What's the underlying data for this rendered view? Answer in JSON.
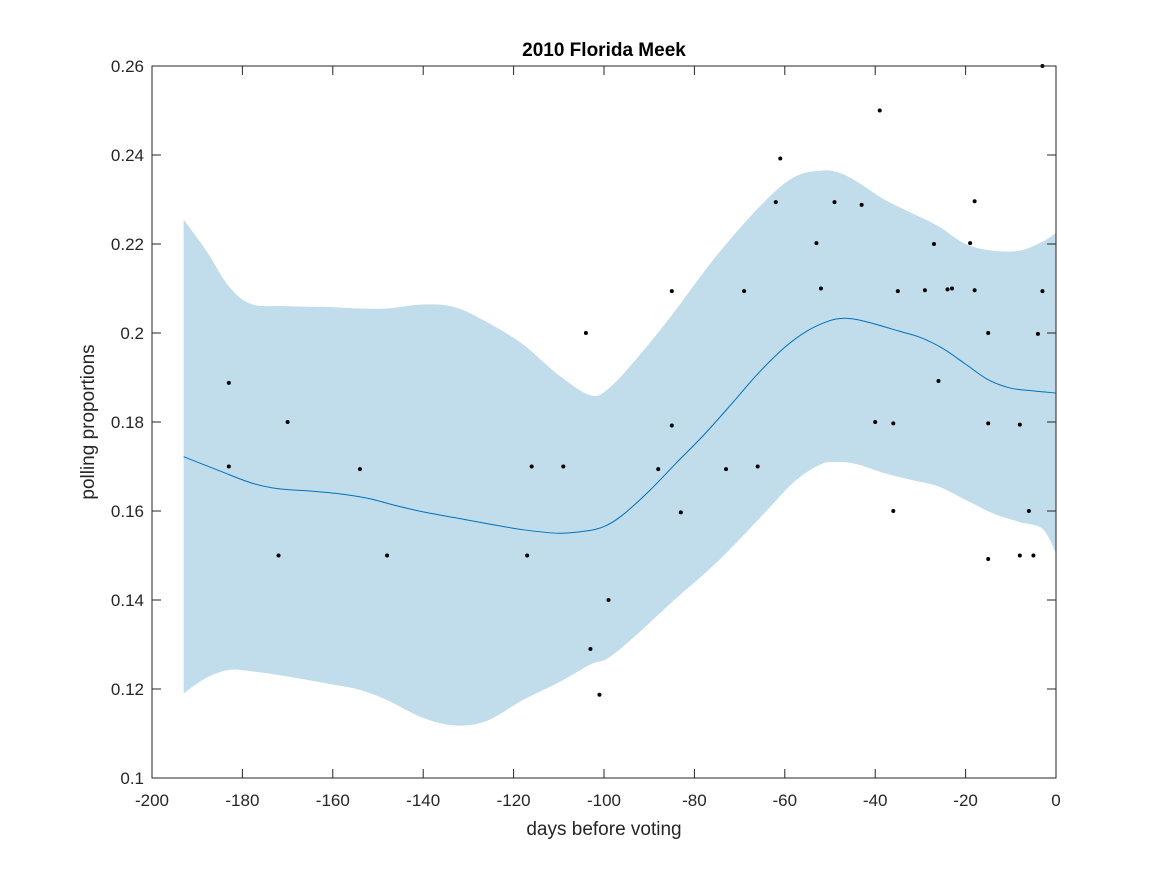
{
  "chart_data": {
    "type": "scatter",
    "title": "2010 Florida Meek",
    "xlabel": "days before voting",
    "ylabel": "polling proportions",
    "xlim": [
      -200,
      0
    ],
    "ylim": [
      0.1,
      0.26
    ],
    "xticks": [
      -200,
      -180,
      -160,
      -140,
      -120,
      -100,
      -80,
      -60,
      -40,
      -20,
      0
    ],
    "xtick_labels": [
      "-200",
      "-180",
      "-160",
      "-140",
      "-120",
      "-100",
      "-80",
      "-60",
      "-40",
      "-20",
      "0"
    ],
    "yticks": [
      0.1,
      0.12,
      0.14,
      0.16,
      0.18,
      0.2,
      0.22,
      0.24,
      0.26
    ],
    "ytick_labels": [
      "0.1",
      "0.12",
      "0.14",
      "0.16",
      "0.18",
      "0.2",
      "0.22",
      "0.24",
      "0.26"
    ],
    "grid": false,
    "colors": {
      "band": "#c1dcea",
      "trend": "#0072bd",
      "points": "#000000",
      "axes": "#262626"
    },
    "confidence_band": {
      "x": [
        -193,
        -188,
        -183,
        -178,
        -170,
        -160,
        -154,
        -148,
        -140,
        -133,
        -126,
        -118,
        -110,
        -103,
        -99,
        -93,
        -85,
        -75,
        -65,
        -58,
        -52,
        -48,
        -44,
        -38,
        -32,
        -26,
        -20,
        -14,
        -8,
        -3,
        0
      ],
      "upper": [
        0.2255,
        0.2185,
        0.2105,
        0.2065,
        0.206,
        0.2058,
        0.2055,
        0.2055,
        0.2064,
        0.2058,
        0.2025,
        0.1975,
        0.1905,
        0.186,
        0.1875,
        0.194,
        0.204,
        0.2175,
        0.229,
        0.235,
        0.2365,
        0.236,
        0.234,
        0.23,
        0.227,
        0.224,
        0.22,
        0.2185,
        0.2185,
        0.2205,
        0.2225
      ],
      "lower": [
        0.119,
        0.1225,
        0.1243,
        0.124,
        0.1228,
        0.121,
        0.1198,
        0.1175,
        0.1135,
        0.1118,
        0.1128,
        0.1175,
        0.1215,
        0.1255,
        0.127,
        0.132,
        0.1395,
        0.1485,
        0.159,
        0.1665,
        0.1705,
        0.171,
        0.1705,
        0.1685,
        0.167,
        0.1655,
        0.1625,
        0.1595,
        0.1575,
        0.156,
        0.1505
      ]
    },
    "series": [
      {
        "type": "line",
        "x": [
          -193,
          -185,
          -178,
          -172,
          -165,
          -158,
          -152,
          -146,
          -140,
          -133,
          -126,
          -118,
          -110,
          -104,
          -100,
          -96,
          -90,
          -84,
          -78,
          -72,
          -66,
          -60,
          -55,
          -50,
          -47,
          -44,
          -40,
          -35,
          -30,
          -25,
          -20,
          -15,
          -10,
          -5,
          0
        ],
        "y": [
          0.1722,
          0.169,
          0.1663,
          0.165,
          0.1645,
          0.1638,
          0.1628,
          0.1612,
          0.1598,
          0.1585,
          0.1572,
          0.1558,
          0.155,
          0.1555,
          0.1565,
          0.159,
          0.1645,
          0.1708,
          0.177,
          0.1838,
          0.1908,
          0.1968,
          0.2005,
          0.2028,
          0.2033,
          0.203,
          0.202,
          0.2005,
          0.199,
          0.1965,
          0.193,
          0.1895,
          0.1876,
          0.187,
          0.1865
        ]
      },
      {
        "type": "scatter",
        "points": [
          [
            -183,
            0.1888
          ],
          [
            -183,
            0.17
          ],
          [
            -172,
            0.15
          ],
          [
            -170,
            0.18
          ],
          [
            -154,
            0.1694
          ],
          [
            -148,
            0.15
          ],
          [
            -117,
            0.15
          ],
          [
            -116,
            0.17
          ],
          [
            -109,
            0.17
          ],
          [
            -104,
            0.2
          ],
          [
            -103,
            0.129
          ],
          [
            -101,
            0.1187
          ],
          [
            -99,
            0.14
          ],
          [
            -88,
            0.1694
          ],
          [
            -85,
            0.2094
          ],
          [
            -85,
            0.1792
          ],
          [
            -83,
            0.1597
          ],
          [
            -73,
            0.1694
          ],
          [
            -69,
            0.2094
          ],
          [
            -66,
            0.17
          ],
          [
            -62,
            0.2294
          ],
          [
            -61,
            0.2392
          ],
          [
            -53,
            0.2202
          ],
          [
            -52,
            0.21
          ],
          [
            -49,
            0.2294
          ],
          [
            -43,
            0.2288
          ],
          [
            -40,
            0.18
          ],
          [
            -39,
            0.25
          ],
          [
            -36,
            0.1797
          ],
          [
            -36,
            0.16
          ],
          [
            -35,
            0.2094
          ],
          [
            -29,
            0.2096
          ],
          [
            -27,
            0.22
          ],
          [
            -26,
            0.1892
          ],
          [
            -24,
            0.2098
          ],
          [
            -23,
            0.21
          ],
          [
            -19,
            0.2202
          ],
          [
            -18,
            0.2296
          ],
          [
            -18,
            0.2096
          ],
          [
            -15,
            0.2
          ],
          [
            -15,
            0.1797
          ],
          [
            -15,
            0.1492
          ],
          [
            -8,
            0.15
          ],
          [
            -8,
            0.1794
          ],
          [
            -6,
            0.16
          ],
          [
            -5,
            0.15
          ],
          [
            -4,
            0.1998
          ],
          [
            -3,
            0.2094
          ],
          [
            -3,
            0.26
          ]
        ]
      }
    ]
  }
}
